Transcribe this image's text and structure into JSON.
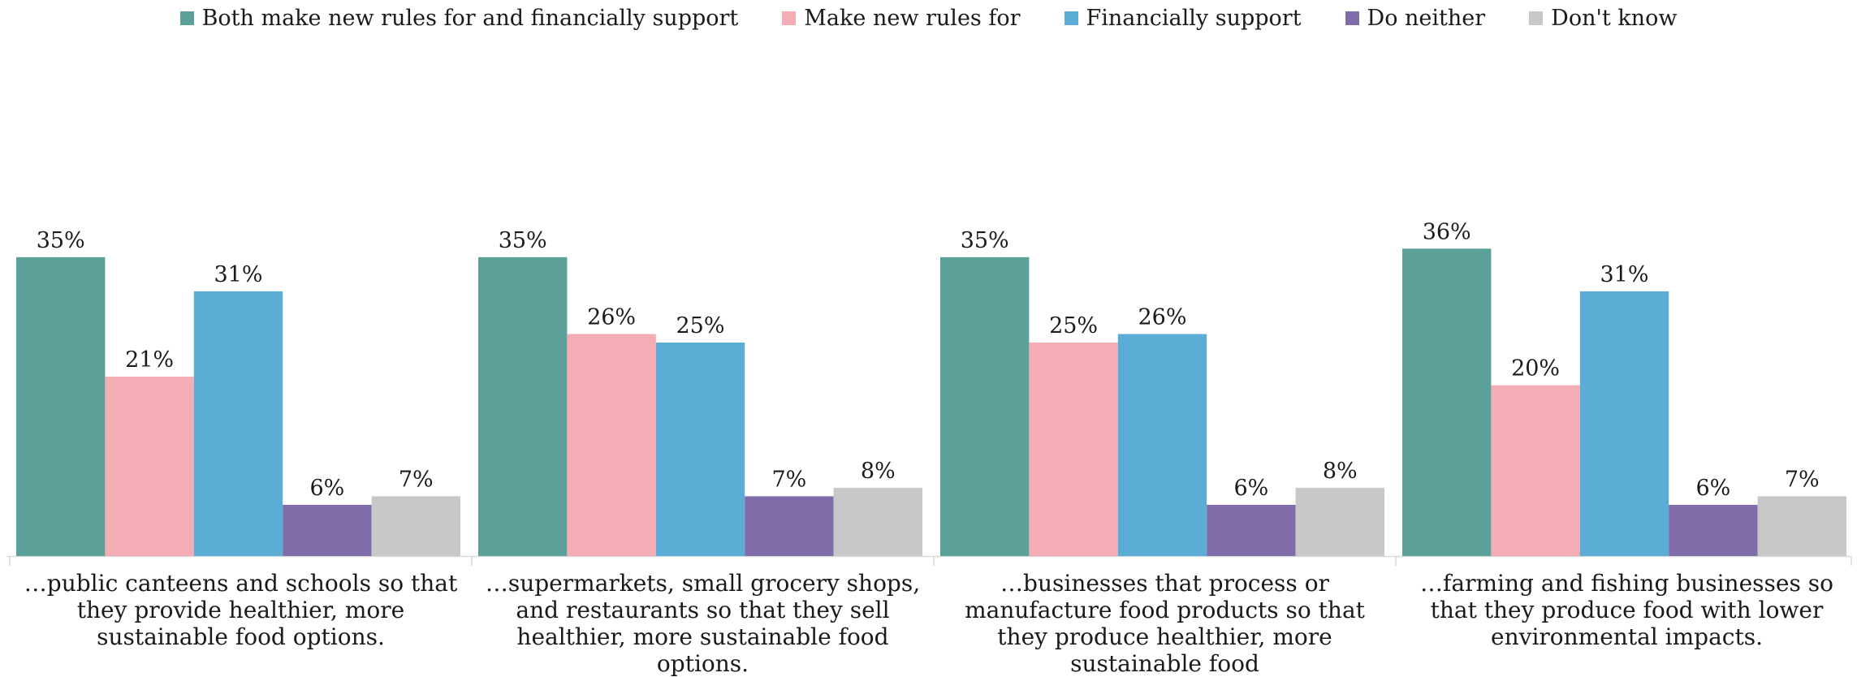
{
  "chart_data": {
    "type": "bar",
    "series": [
      {
        "name": "Both make new rules for and financially support",
        "color": "#5ba199",
        "values": [
          35,
          35,
          35,
          36
        ]
      },
      {
        "name": "Make new rules for",
        "color": "#f4adb5",
        "values": [
          21,
          26,
          25,
          20
        ]
      },
      {
        "name": "Financially support",
        "color": "#5badd5",
        "values": [
          31,
          25,
          26,
          31
        ]
      },
      {
        "name": "Do neither",
        "color": "#806ca8",
        "values": [
          6,
          7,
          6,
          6
        ]
      },
      {
        "name": "Don't know",
        "color": "#c8c8c8",
        "values": [
          7,
          8,
          8,
          7
        ]
      }
    ],
    "categories": [
      "…public canteens and schools so that they provide healthier, more sustainable food options.",
      "…supermarkets, small grocery shops, and restaurants so that they sell healthier, more sustainable food options.",
      "…businesses that process or manufacture food products so that they produce healthier, more sustainable food",
      "…farming and fishing businesses so that they produce food with lower environmental impacts."
    ],
    "value_suffix": "%",
    "ylim": [
      0,
      40
    ],
    "legend_position": "top",
    "grid": false
  }
}
